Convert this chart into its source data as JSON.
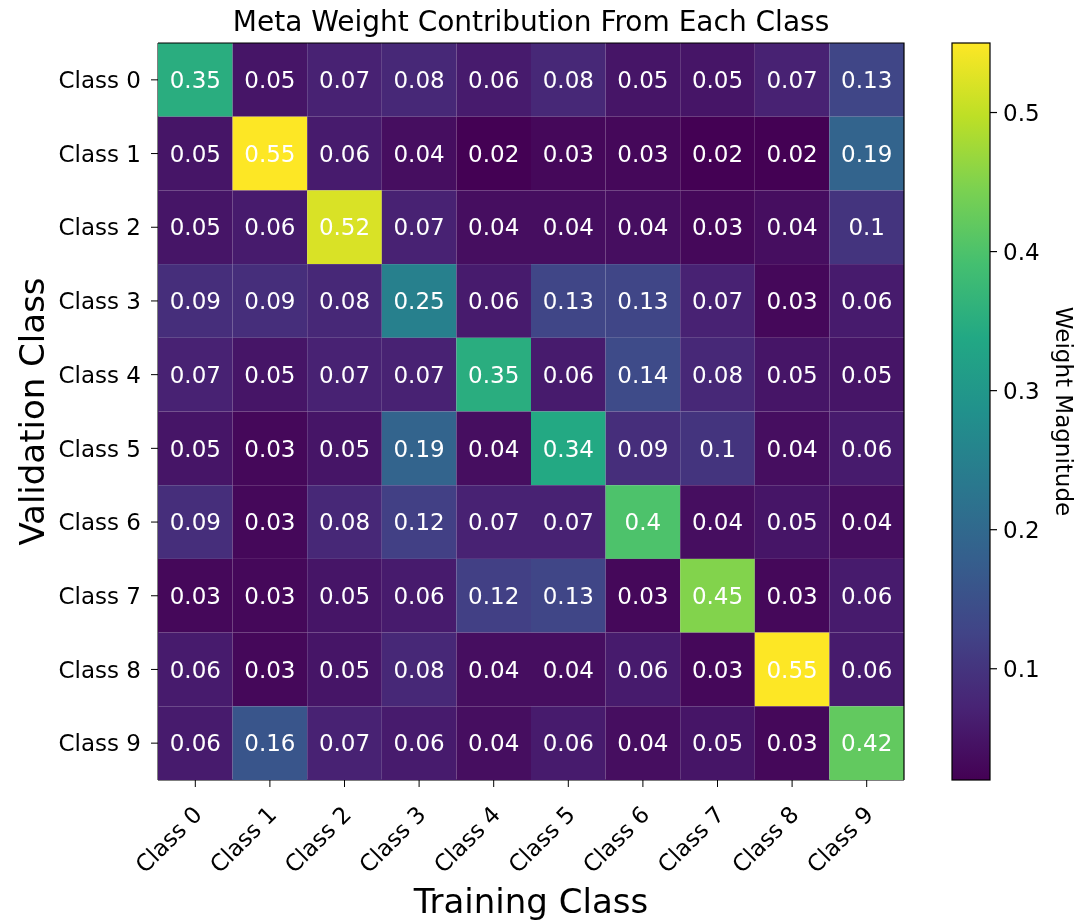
{
  "chart_data": {
    "type": "heatmap",
    "title": "Meta Weight Contribution From Each Class",
    "xlabel": "Training Class",
    "ylabel": "Validation Class",
    "clabel": "Weight Magnitude",
    "categories": [
      "Class 0",
      "Class 1",
      "Class 2",
      "Class 3",
      "Class 4",
      "Class 5",
      "Class 6",
      "Class 7",
      "Class 8",
      "Class 9"
    ],
    "y_categories": [
      "Class 0",
      "Class 1",
      "Class 2",
      "Class 3",
      "Class 4",
      "Class 5",
      "Class 6",
      "Class 7",
      "Class 8",
      "Class 9"
    ],
    "cells": [
      [
        0.35,
        0.05,
        0.07,
        0.08,
        0.06,
        0.08,
        0.05,
        0.05,
        0.07,
        0.13
      ],
      [
        0.05,
        0.55,
        0.06,
        0.04,
        0.02,
        0.03,
        0.03,
        0.02,
        0.02,
        0.19
      ],
      [
        0.05,
        0.06,
        0.52,
        0.07,
        0.04,
        0.04,
        0.04,
        0.03,
        0.04,
        0.1
      ],
      [
        0.09,
        0.09,
        0.08,
        0.25,
        0.06,
        0.13,
        0.13,
        0.07,
        0.03,
        0.06
      ],
      [
        0.07,
        0.05,
        0.07,
        0.07,
        0.35,
        0.06,
        0.14,
        0.08,
        0.05,
        0.05
      ],
      [
        0.05,
        0.03,
        0.05,
        0.19,
        0.04,
        0.34,
        0.09,
        0.1,
        0.04,
        0.06
      ],
      [
        0.09,
        0.03,
        0.08,
        0.12,
        0.07,
        0.07,
        0.4,
        0.04,
        0.05,
        0.04
      ],
      [
        0.03,
        0.03,
        0.05,
        0.06,
        0.12,
        0.13,
        0.03,
        0.45,
        0.03,
        0.06
      ],
      [
        0.06,
        0.03,
        0.05,
        0.08,
        0.04,
        0.04,
        0.06,
        0.03,
        0.55,
        0.06
      ],
      [
        0.06,
        0.16,
        0.07,
        0.06,
        0.04,
        0.06,
        0.04,
        0.05,
        0.03,
        0.42
      ]
    ],
    "clim": [
      0.02,
      0.55
    ],
    "cticks": [
      0.1,
      0.2,
      0.3,
      0.4,
      0.5
    ],
    "data_labels": true
  }
}
